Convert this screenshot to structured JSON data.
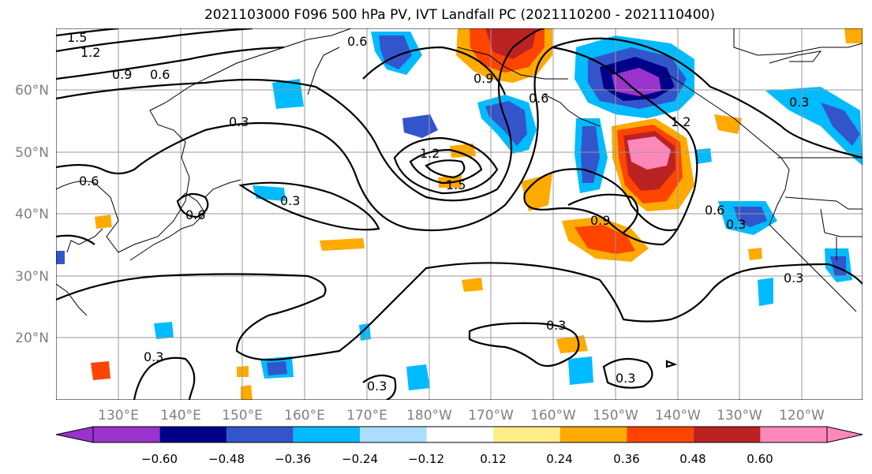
{
  "title": "2021103000 F096 500 hPa PV, IVT Landfall PC (2021110200 - 2021110400)",
  "lat_labels": [
    "60°N",
    "50°N",
    "40°N",
    "30°N",
    "20°N"
  ],
  "lon_labels": [
    "130°E",
    "140°E",
    "150°E",
    "160°E",
    "170°E",
    "180°W",
    "170°W",
    "160°W",
    "150°W",
    "140°W",
    "130°W",
    "120°W"
  ],
  "colorbar": {
    "ticks": [
      "−0.60",
      "−0.48",
      "−0.36",
      "−0.24",
      "−0.12",
      "0.12",
      "0.24",
      "0.36",
      "0.48",
      "0.60"
    ],
    "colors": [
      "#9933cc",
      "#000088",
      "#3355cc",
      "#00bbff",
      "#aaddff",
      "#ffffff",
      "#ffee88",
      "#ffaa00",
      "#ff4400",
      "#bb2222",
      "#ff88bb"
    ]
  },
  "contour_labels": [
    "1.5",
    "1.2",
    "0.9",
    "0.6",
    "0.3",
    "0.6",
    "0.6",
    "0.3",
    "1.2",
    "1.5",
    "0.9",
    "0.6",
    "1.2",
    "0.9",
    "0.6",
    "0.3",
    "0.3",
    "0.3",
    "0.3",
    "0.3",
    "0.3",
    "0.3",
    "0.6"
  ]
}
